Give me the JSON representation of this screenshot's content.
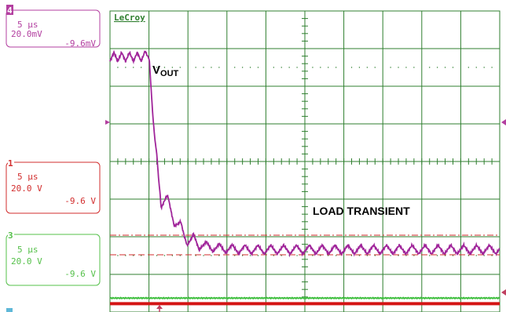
{
  "brand": "LeCroy",
  "annotations": {
    "vout_main": "V",
    "vout_sub": "OUT",
    "load_transient": "LOAD TRANSIENT"
  },
  "channels": [
    {
      "label": "4",
      "timebase": "5 μs",
      "scale": "20.0mV",
      "offset": "-9.6mV",
      "color": "#b33fa0"
    },
    {
      "label": "1",
      "timebase": "5 μs",
      "scale": "20.0 V",
      "offset": "-9.6 V",
      "color": "#d22d2d"
    },
    {
      "label": "3",
      "timebase": "5 μs",
      "scale": "20.0 V",
      "offset": "-9.6 V",
      "color": "#55c04a"
    }
  ],
  "colors": {
    "grid": "#2f7f2f",
    "vout": "#a0259a",
    "current": "#d41414",
    "ch3": "#3fbf3f",
    "marker": "#c04060"
  },
  "chart_data": {
    "type": "line",
    "title": "",
    "xlabel": "",
    "ylabel": "",
    "grid": true,
    "divisions": {
      "x": 10,
      "y": 8
    },
    "xlim": [
      0,
      10
    ],
    "ylim": [
      0,
      8
    ],
    "series": [
      {
        "channel": "4",
        "x": [
          0,
          0.4,
          0.8,
          1.0,
          1.05,
          1.1,
          1.15,
          1.2,
          1.25,
          1.3,
          1.45,
          1.6,
          1.75,
          1.9,
          2.1,
          2.3,
          2.6,
          3.0,
          3.5,
          4.0,
          5.0,
          6.0,
          7.0,
          8.0,
          9.0,
          10.0
        ],
        "y": [
          6.78,
          6.78,
          6.78,
          6.85,
          6.0,
          5.2,
          4.6,
          4.2,
          3.5,
          3.0,
          2.95,
          2.6,
          2.3,
          2.05,
          1.88,
          1.8,
          1.72,
          1.68,
          1.66,
          1.66,
          1.66,
          1.66,
          1.66,
          1.66,
          1.66,
          1.66
        ],
        "ripple_amplitude": 0.12
      },
      {
        "channel": "1",
        "x": [
          0,
          10
        ],
        "y": [
          0.22,
          0.22
        ]
      },
      {
        "channel": "3",
        "x": [
          0,
          10
        ],
        "y": [
          0.37,
          0.37
        ]
      }
    ]
  }
}
